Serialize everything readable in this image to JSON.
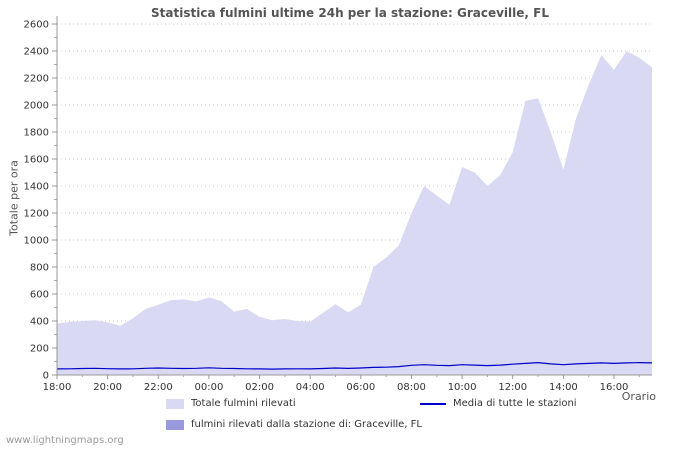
{
  "watermark": "www.lightningmaps.org",
  "chart_data": {
    "type": "area",
    "title": "Statistica fulmini ultime 24h per la stazione: Graceville, FL",
    "xlabel": "Orario",
    "ylabel": "Totale per ora",
    "ylim": [
      0,
      2600
    ],
    "y_tick_step": 200,
    "grid": true,
    "legend_position": "bottom",
    "x_start": "18:00",
    "x_step_minutes": 30,
    "x_tick_labels": [
      "18:00",
      "20:00",
      "22:00",
      "00:00",
      "02:00",
      "04:00",
      "06:00",
      "08:00",
      "10:00",
      "12:00",
      "14:00",
      "16:00"
    ],
    "series": [
      {
        "name": "Totale fulmini rilevati",
        "type": "area",
        "color": "#d9d9f3",
        "values": [
          380,
          395,
          400,
          405,
          390,
          365,
          420,
          490,
          520,
          555,
          560,
          545,
          575,
          545,
          470,
          490,
          430,
          405,
          415,
          400,
          395,
          460,
          525,
          465,
          520,
          800,
          870,
          960,
          1200,
          1400,
          1330,
          1260,
          1540,
          1500,
          1400,
          1480,
          1650,
          2030,
          2050,
          1800,
          1520,
          1900,
          2150,
          2370,
          2260,
          2400,
          2350,
          2280
        ]
      },
      {
        "name": "fulmini rilevati dalla stazione di: Graceville, FL",
        "type": "area",
        "color": "#9999dd",
        "values": [
          0,
          0,
          0,
          0,
          0,
          0,
          0,
          0,
          0,
          0,
          0,
          0,
          0,
          0,
          0,
          0,
          0,
          0,
          0,
          0,
          0,
          0,
          0,
          0,
          0,
          0,
          0,
          0,
          0,
          0,
          0,
          0,
          0,
          0,
          0,
          0,
          0,
          0,
          0,
          0,
          0,
          0,
          0,
          0,
          0,
          0,
          0,
          0
        ]
      },
      {
        "name": "Media di tutte le stazioni",
        "type": "line",
        "color": "#0000cc",
        "values": [
          45,
          46,
          48,
          50,
          47,
          45,
          46,
          50,
          52,
          50,
          48,
          50,
          53,
          50,
          48,
          46,
          45,
          44,
          45,
          46,
          45,
          48,
          52,
          49,
          52,
          56,
          58,
          62,
          72,
          76,
          72,
          70,
          76,
          73,
          70,
          73,
          80,
          86,
          92,
          82,
          76,
          82,
          86,
          90,
          86,
          90,
          92,
          90
        ]
      }
    ]
  }
}
